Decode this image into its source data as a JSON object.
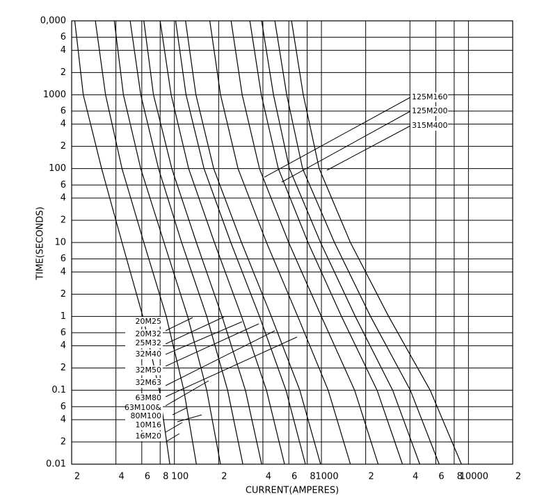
{
  "chart_data": {
    "type": "line",
    "xlabel": "CURRENT(AMPERES)",
    "ylabel": "TIME(SECONDS)",
    "log_x": true,
    "log_y": true,
    "grid": true,
    "color": "#000000",
    "xlim": [
      20,
      20000
    ],
    "ylim": [
      0.01,
      10000
    ],
    "xticks": [
      {
        "value": 20,
        "label": "2"
      },
      {
        "value": 40,
        "label": "4"
      },
      {
        "value": 60,
        "label": "6"
      },
      {
        "value": 80,
        "label": "8"
      },
      100,
      {
        "value": 200,
        "label": "2"
      },
      {
        "value": 400,
        "label": "4"
      },
      {
        "value": 600,
        "label": "6"
      },
      {
        "value": 800,
        "label": "8"
      },
      1000,
      {
        "value": 2000,
        "label": "2"
      },
      {
        "value": 4000,
        "label": "4"
      },
      {
        "value": 6000,
        "label": "6"
      },
      {
        "value": 8000,
        "label": "8"
      },
      10000,
      {
        "value": 20000,
        "label": "2"
      }
    ],
    "yticks": [
      0.01,
      {
        "value": 0.02,
        "label": "2"
      },
      {
        "value": 0.04,
        "label": "4"
      },
      {
        "value": 0.06,
        "label": "6"
      },
      0.1,
      {
        "value": 0.2,
        "label": "2"
      },
      {
        "value": 0.4,
        "label": "4"
      },
      {
        "value": 0.6,
        "label": "6"
      },
      1,
      {
        "value": 2,
        "label": "2"
      },
      {
        "value": 4,
        "label": "4"
      },
      {
        "value": 6,
        "label": "6"
      },
      10,
      {
        "value": 20,
        "label": "2"
      },
      {
        "value": 40,
        "label": "4"
      },
      {
        "value": 60,
        "label": "6"
      },
      100,
      {
        "value": 200,
        "label": "2"
      },
      {
        "value": 400,
        "label": "4"
      },
      {
        "value": 600,
        "label": "6"
      },
      1000,
      {
        "value": 2000,
        "label": "2"
      },
      {
        "value": 4000,
        "label": "4"
      },
      {
        "value": 6000,
        "label": "6"
      },
      {
        "value": 10000,
        "label": "0,000"
      }
    ],
    "series": [
      {
        "x": [
          21,
          24,
          32,
          44,
          61,
          79,
          93
        ],
        "values": [
          10000,
          1000,
          100,
          10,
          1,
          0.1,
          0.01
        ]
      },
      {
        "x": [
          29,
          34,
          44,
          62,
          88,
          116,
          141
        ],
        "values": [
          10000,
          1000,
          100,
          10,
          1,
          0.1,
          0.01
        ]
      },
      {
        "x": [
          39,
          45,
          59,
          85,
          123,
          166,
          206
        ],
        "values": [
          10000,
          1000,
          100,
          10,
          1,
          0.1,
          0.01
        ]
      },
      {
        "x": [
          50,
          59,
          78,
          112,
          166,
          230,
          292
        ],
        "values": [
          10000,
          1000,
          100,
          10,
          1,
          0.1,
          0.01
        ]
      },
      {
        "x": [
          62,
          72,
          96,
          141,
          211,
          304,
          392
        ],
        "values": [
          10000,
          1000,
          100,
          10,
          1,
          0.1,
          0.01
        ]
      },
      {
        "x": [
          80,
          95,
          125,
          187,
          286,
          423,
          561
        ],
        "values": [
          10000,
          1000,
          100,
          10,
          1,
          0.1,
          0.01
        ]
      },
      {
        "x": [
          102,
          120,
          159,
          242,
          379,
          574,
          778
        ],
        "values": [
          10000,
          1000,
          100,
          10,
          1,
          0.1,
          0.01
        ]
      },
      {
        "x": [
          119,
          140,
          185,
          286,
          456,
          713,
          987
        ],
        "values": [
          10000,
          1000,
          100,
          10,
          1,
          0.1,
          0.01
        ]
      },
      {
        "x": [
          174,
          206,
          271,
          423,
          690,
          1112,
          1574
        ],
        "values": [
          10000,
          1000,
          100,
          10,
          1,
          0.1,
          0.01
        ]
      },
      {
        "x": [
          243,
          289,
          379,
          599,
          998,
          1682,
          2432
        ],
        "values": [
          10000,
          1000,
          100,
          10,
          1,
          0.1,
          0.01
        ]
      },
      {
        "x": [
          326,
          390,
          509,
          811,
          1368,
          2392,
          3558
        ],
        "values": [
          10000,
          1000,
          100,
          10,
          1,
          0.1,
          0.01
        ]
      },
      {
        "x": [
          392,
          472,
          606,
          987,
          1699,
          3054,
          4667
        ],
        "values": [
          10000,
          1000,
          100,
          10,
          1,
          0.1,
          0.01
        ]
      },
      {
        "x": [
          482,
          580,
          745,
          1227,
          2158,
          4028,
          6325
        ],
        "values": [
          10000,
          1000,
          100,
          10,
          1,
          0.1,
          0.01
        ]
      },
      {
        "x": [
          626,
          752,
          966,
          1574,
          2863,
          5492,
          8955
        ],
        "values": [
          10000,
          1000,
          100,
          10,
          1,
          0.1,
          0.01
        ]
      }
    ],
    "annotations": [
      "20M25",
      "20M32",
      "25M32",
      "32M40",
      "32M50",
      "32M63",
      "63M80",
      "63M100&",
      "80M100",
      "10M16",
      "16M20",
      "125M160",
      "125M200",
      "315M400"
    ]
  }
}
